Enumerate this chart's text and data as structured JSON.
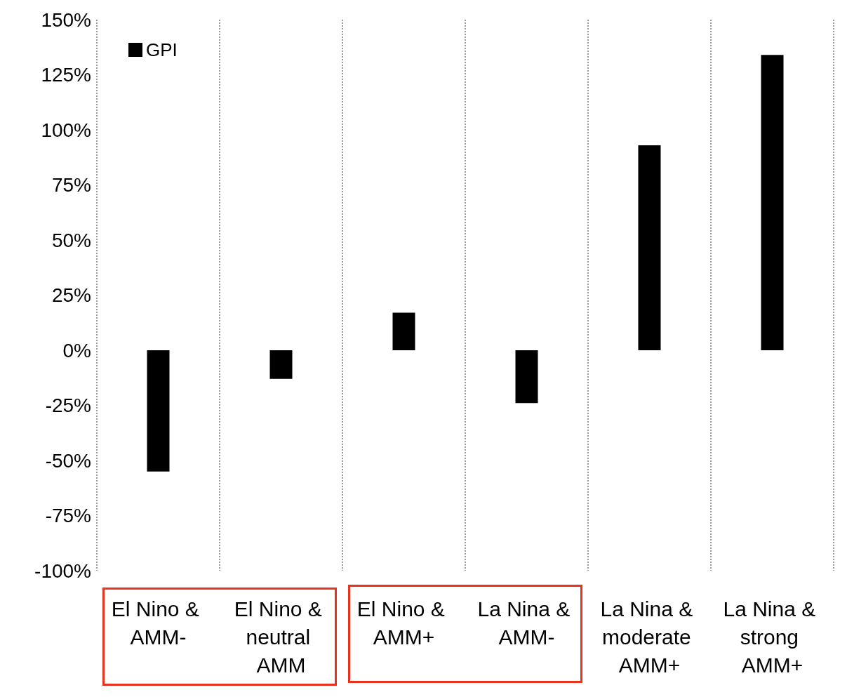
{
  "chart_data": {
    "type": "bar",
    "categories": [
      "El Nino & AMM-",
      "El Nino & neutral AMM",
      "El Nino & AMM+",
      "La Nina & AMM-",
      "La Nina & moderate AMM+",
      "La Nina & strong AMM+"
    ],
    "series": [
      {
        "name": "GPI",
        "color": "#000000",
        "values": [
          -55,
          -13,
          17,
          -24,
          93,
          134
        ]
      }
    ],
    "ylim": [
      -100,
      150
    ],
    "yticks": [
      {
        "value": -100,
        "label": "-100%"
      },
      {
        "value": -75,
        "label": "-75%"
      },
      {
        "value": -50,
        "label": "-50%"
      },
      {
        "value": -25,
        "label": "-25%"
      },
      {
        "value": 0,
        "label": "0%"
      },
      {
        "value": 25,
        "label": "25%"
      },
      {
        "value": 50,
        "label": "50%"
      },
      {
        "value": 75,
        "label": "75%"
      },
      {
        "value": 100,
        "label": "100%"
      },
      {
        "value": 125,
        "label": "125%"
      },
      {
        "value": 150,
        "label": "150%"
      }
    ],
    "grid": "x",
    "legend": "top left"
  }
}
